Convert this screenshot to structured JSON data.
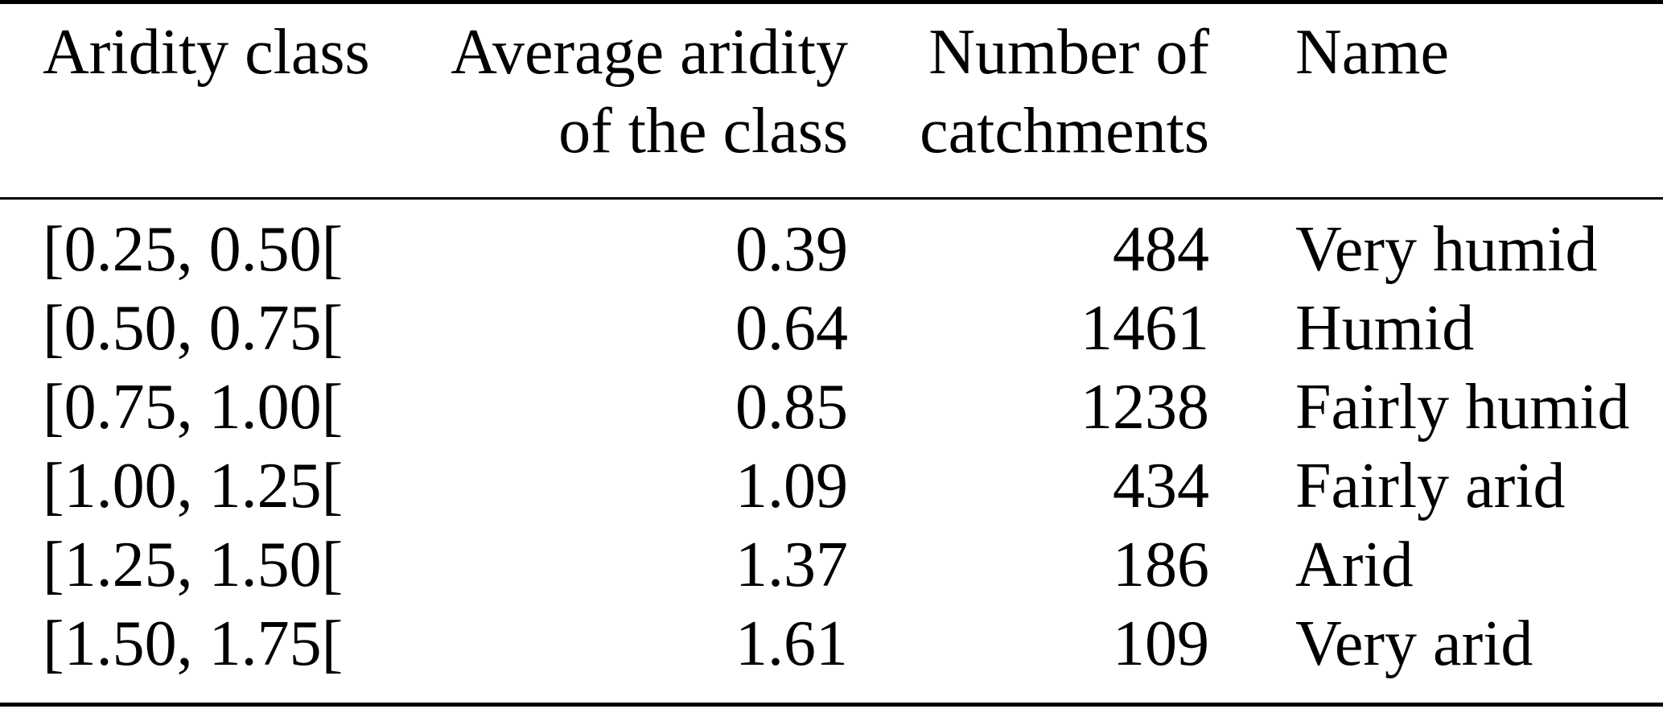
{
  "colors": {
    "background": "#ffffff",
    "text": "#000000",
    "rule": "#000000"
  },
  "table": {
    "header": {
      "aridity_class": {
        "line1": "Aridity class",
        "line2": ""
      },
      "average_aridity": {
        "line1": "Average aridity",
        "line2": "of the class"
      },
      "catchments": {
        "line1": "Number of",
        "line2": "catchments"
      },
      "name": {
        "line1": "Name",
        "line2": ""
      }
    },
    "rows": [
      {
        "aridity_class": "[0.25, 0.50[",
        "average_aridity": "0.39",
        "catchments": "484",
        "name": "Very humid"
      },
      {
        "aridity_class": "[0.50, 0.75[",
        "average_aridity": "0.64",
        "catchments": "1461",
        "name": "Humid"
      },
      {
        "aridity_class": "[0.75, 1.00[",
        "average_aridity": "0.85",
        "catchments": "1238",
        "name": "Fairly humid"
      },
      {
        "aridity_class": "[1.00, 1.25[",
        "average_aridity": "1.09",
        "catchments": "434",
        "name": "Fairly arid"
      },
      {
        "aridity_class": "[1.25, 1.50[",
        "average_aridity": "1.37",
        "catchments": "186",
        "name": "Arid"
      },
      {
        "aridity_class": "[1.50, 1.75[",
        "average_aridity": "1.61",
        "catchments": "109",
        "name": "Very arid"
      }
    ]
  }
}
